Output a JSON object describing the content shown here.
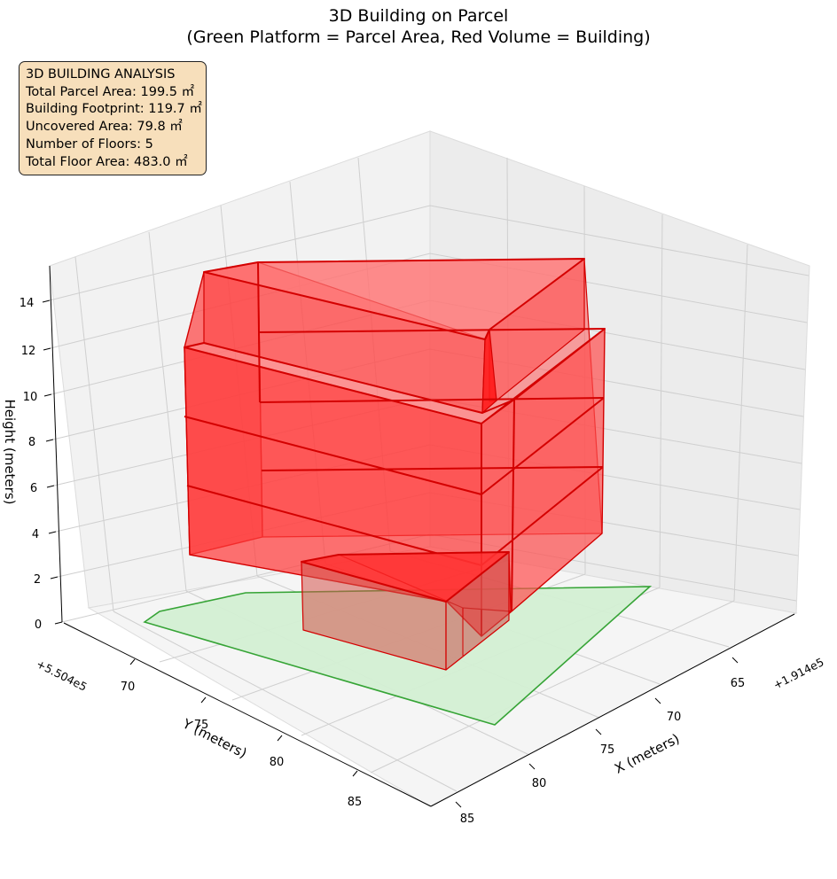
{
  "chart_data": {
    "type": "3d-polygon",
    "title_lines": [
      "3D Building on Parcel",
      "(Green Platform = Parcel Area, Red Volume = Building)"
    ],
    "axes": {
      "x": {
        "label": "X (meters)",
        "ticks": [
          "65",
          "70",
          "75",
          "80",
          "85"
        ],
        "offset": "+1.914e5"
      },
      "y": {
        "label": "Y (meters)",
        "ticks": [
          "70",
          "75",
          "80",
          "85"
        ],
        "offset": "+5.504e5"
      },
      "z": {
        "label": "Height (meters)",
        "ticks": [
          "0",
          "2",
          "4",
          "6",
          "8",
          "10",
          "12",
          "14"
        ]
      }
    },
    "grid": true,
    "series": [
      {
        "name": "Parcel Area",
        "color": "#2ca02c",
        "fill": "#d4f0d4"
      },
      {
        "name": "Building",
        "color": "#d40000",
        "fill": "#ff3030"
      }
    ],
    "analysis": {
      "heading": "3D BUILDING ANALYSIS",
      "lines": [
        "Total Parcel Area: 199.5 ㎡",
        "Building Footprint: 119.7 ㎡",
        "Uncovered Area: 79.8 ㎡",
        "Number of Floors: 5",
        "Total Floor Area: 483.0 ㎡"
      ]
    }
  }
}
